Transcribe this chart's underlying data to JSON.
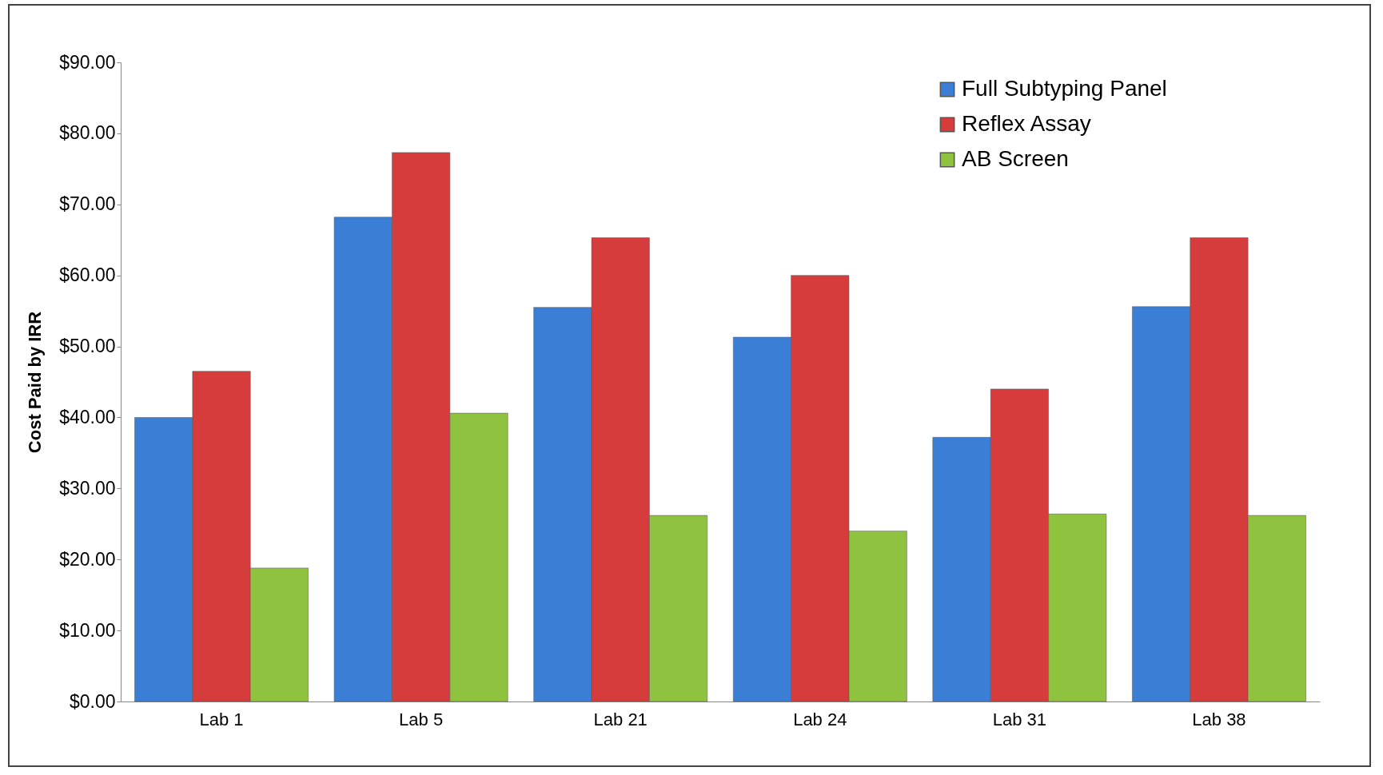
{
  "chart_data": {
    "type": "bar",
    "ylabel": "Cost Paid by IRR",
    "categories": [
      "Lab 1",
      "Lab 5",
      "Lab 21",
      "Lab 24",
      "Lab 31",
      "Lab 38"
    ],
    "series": [
      {
        "name": "Full Subtyping Panel",
        "color": "#3a7fd5",
        "values": [
          40.0,
          68.2,
          55.5,
          51.3,
          37.2,
          55.6
        ]
      },
      {
        "name": "Reflex Assay",
        "color": "#d63c3c",
        "values": [
          46.5,
          77.3,
          65.3,
          60.0,
          44.0,
          65.3
        ]
      },
      {
        "name": "AB Screen",
        "color": "#8fc23f",
        "values": [
          18.8,
          40.6,
          26.2,
          24.0,
          26.4,
          26.2
        ]
      }
    ],
    "ylim": [
      0,
      90
    ],
    "yticks": [
      {
        "value": 0,
        "label": "$0.00"
      },
      {
        "value": 10,
        "label": "$10.00"
      },
      {
        "value": 20,
        "label": "$20.00"
      },
      {
        "value": 30,
        "label": "$30.00"
      },
      {
        "value": 40,
        "label": "$40.00"
      },
      {
        "value": 50,
        "label": "$50.00"
      },
      {
        "value": 60,
        "label": "$60.00"
      },
      {
        "value": 70,
        "label": "$70.00"
      },
      {
        "value": 80,
        "label": "$80.00"
      },
      {
        "value": 90,
        "label": "$90.00"
      }
    ],
    "legend": "top right",
    "grid": false
  }
}
